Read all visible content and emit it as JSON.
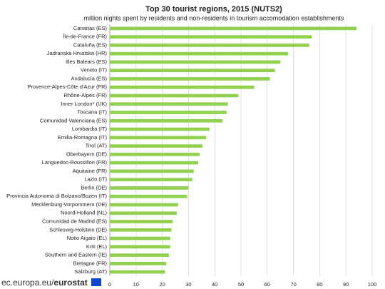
{
  "chart_data": {
    "type": "hbar",
    "title": "Top 30 tourist regions, 2015 (NUTS2)",
    "subtitle": "million nights spent by residents and non-residents in tourism accomodation establishments",
    "categories": [
      "Canarias (ES)",
      "Île-de-France (FR)",
      "Cataluña (ES)",
      "Jadranska Hrvatska (HR)",
      "Illes Balears (ES)",
      "Veneto (IT)",
      "Andalucía (ES)",
      "Provence-Alpes-Côte d'Azur (FR)",
      "Rhône-Alpes (FR)",
      "Inner London* (UK)",
      "Toscana (IT)",
      "Comunidad Valenciana (ES)",
      "Lombardia (IT)",
      "Emilia-Romagna (IT)",
      "Tirol (AT)",
      "Oberbayern (DE)",
      "Languedoc-Roussillon (FR)",
      "Aquitaine (FR)",
      "Lazio (IT)",
      "Berlin (DE)",
      "Provincia Autonoma di Bolzano/Bozen (IT)",
      "Mecklenburg-Vorpommern (DE)",
      "Noord-Holland (NL)",
      "Comunidad de Madrid (ES)",
      "Schleswig-Holstein (DE)",
      "Notio Aigaio (EL)",
      "Kriti (EL)",
      "Southern and Eastern (IE)",
      "Bretagne (FR)",
      "Salzburg (AT)"
    ],
    "values": [
      94,
      77,
      76,
      68,
      65,
      63,
      61,
      55,
      49,
      45,
      44.5,
      43,
      38,
      36.7,
      35.3,
      34.2,
      33.7,
      32,
      31.5,
      30,
      29.5,
      26,
      25.5,
      24,
      23.5,
      23,
      23,
      22.5,
      21.5,
      21
    ],
    "color": "#92d050",
    "xlim": [
      0,
      100
    ],
    "xticks": [
      0,
      10,
      20,
      30,
      40,
      50,
      60,
      70,
      80,
      90,
      100
    ],
    "grid": true,
    "source": {
      "site": "ec.europa.eu/",
      "brand": "eurostat"
    }
  }
}
